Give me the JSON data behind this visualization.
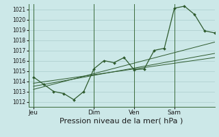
{
  "background_color": "#cce8e8",
  "grid_color": "#aacccc",
  "line_color": "#2d5a2d",
  "marker_color": "#2d5a2d",
  "xlabel": "Pression niveau de la mer( hPa )",
  "xlabel_fontsize": 8,
  "ylim": [
    1011.5,
    1021.5
  ],
  "yticks": [
    1012,
    1013,
    1014,
    1015,
    1016,
    1017,
    1018,
    1019,
    1020,
    1021
  ],
  "xtick_labels": [
    "Jeu",
    "Dim",
    "Ven",
    "Sam"
  ],
  "xtick_positions": [
    0,
    36,
    60,
    84
  ],
  "vline_positions": [
    0,
    36,
    60,
    84
  ],
  "xlim": [
    -3,
    108
  ],
  "series1_x": [
    0,
    6,
    12,
    18,
    24,
    30,
    36,
    42,
    48,
    54,
    60,
    66,
    72,
    78,
    84,
    90,
    96,
    102,
    108
  ],
  "series1_y": [
    1014.4,
    1013.7,
    1013.0,
    1012.8,
    1012.2,
    1013.0,
    1015.2,
    1016.0,
    1015.8,
    1016.3,
    1015.1,
    1015.2,
    1017.0,
    1017.2,
    1021.1,
    1021.3,
    1020.5,
    1018.9,
    1018.7
  ],
  "trend1_x": [
    0,
    108
  ],
  "trend1_y": [
    1013.8,
    1016.3
  ],
  "trend2_x": [
    0,
    108
  ],
  "trend2_y": [
    1013.5,
    1016.7
  ],
  "trend3_x": [
    0,
    108
  ],
  "trend3_y": [
    1013.2,
    1017.8
  ],
  "figsize": [
    3.2,
    2.0
  ],
  "dpi": 100
}
